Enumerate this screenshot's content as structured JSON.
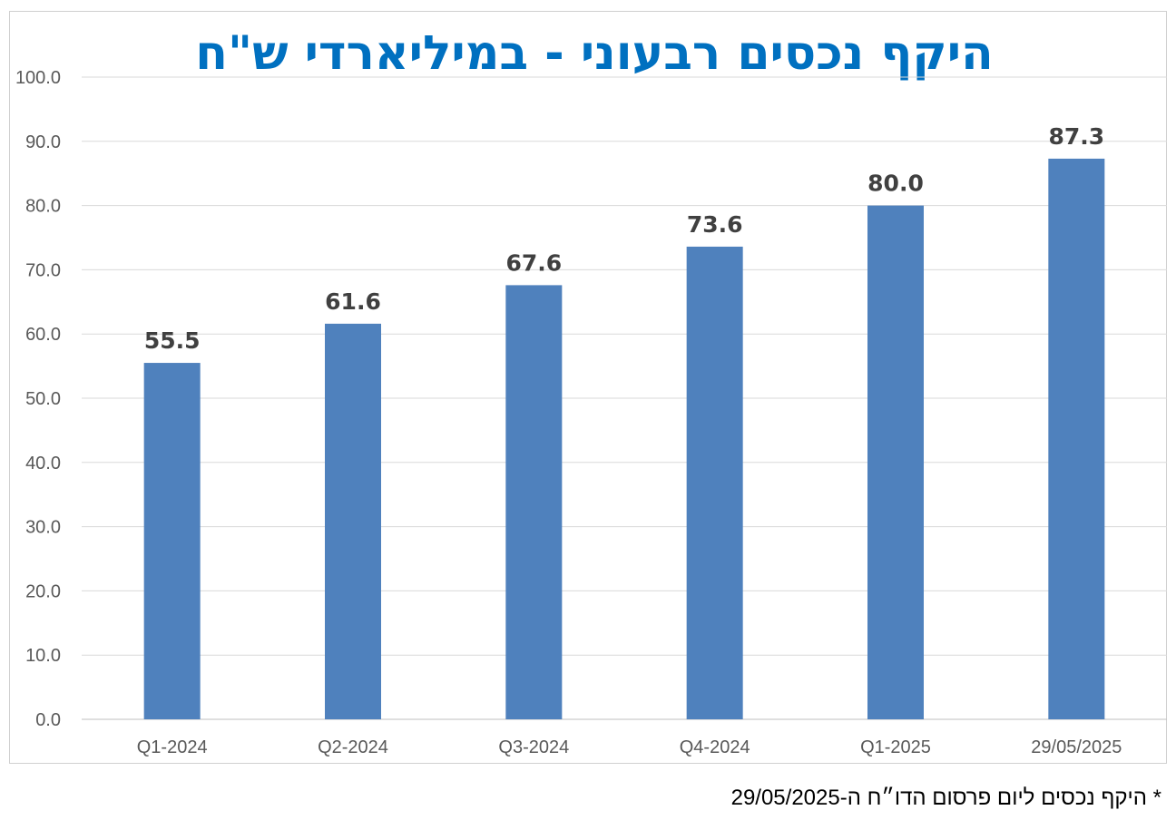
{
  "chart_data": {
    "type": "bar",
    "title": "היקף נכסים רבעוני - במיליארדי ש\"ח",
    "categories": [
      "Q1-2024",
      "Q2-2024",
      "Q3-2024",
      "Q4-2024",
      "Q1-2025",
      "29/05/2025"
    ],
    "values": [
      55.5,
      61.6,
      67.6,
      73.6,
      80.0,
      87.3
    ],
    "value_labels": [
      "55.5",
      "61.6",
      "67.6",
      "73.6",
      "80.0",
      "87.3"
    ],
    "ylim": [
      0,
      100
    ],
    "yticks": [
      "0.0",
      "10.0",
      "20.0",
      "30.0",
      "40.0",
      "50.0",
      "60.0",
      "70.0",
      "80.0",
      "90.0",
      "100.0"
    ],
    "grid": true,
    "legend": "none",
    "bar_color": "#4F81BD",
    "title_color": "#0070C0"
  },
  "footnote": "* היקף נכסים ליום פרסום הדו״ח ה-29/05/2025"
}
